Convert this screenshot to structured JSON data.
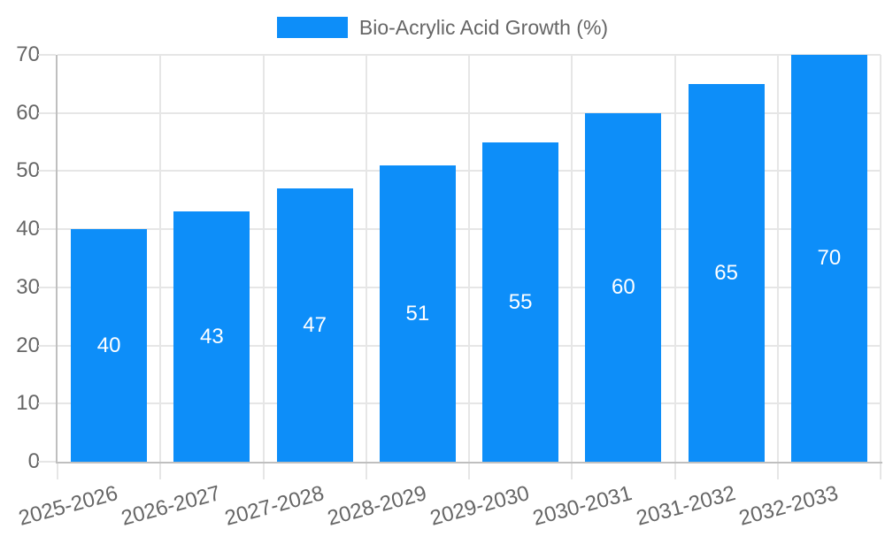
{
  "chart": {
    "legend": {
      "label": "Bio-Acrylic Acid Growth (%)"
    }
  },
  "style": {
    "bar_color": "#0d8ef9",
    "bar_label_color": "#ffffff",
    "grid_color": "#e6e6e6",
    "axis_color": "#bfbfbf",
    "text_color": "#666666",
    "background": "#ffffff"
  },
  "chart_data": {
    "type": "bar",
    "title": "Bio-Acrylic Acid Growth (%)",
    "categories": [
      "2025-2026",
      "2026-2027",
      "2027-2028",
      "2028-2029",
      "2029-2030",
      "2030-2031",
      "2031-2032",
      "2032-2033"
    ],
    "series": [
      {
        "name": "Bio-Acrylic Acid Growth (%)",
        "values": [
          40,
          43,
          47,
          51,
          55,
          60,
          65,
          70
        ]
      }
    ],
    "xlabel": "",
    "ylabel": "",
    "ylim": [
      0,
      70
    ],
    "yticks": [
      0,
      10,
      20,
      30,
      40,
      50,
      60,
      70
    ],
    "grid": true,
    "legend_position": "top",
    "x_tick_rotation_deg": -15,
    "value_labels": "inside-center"
  }
}
